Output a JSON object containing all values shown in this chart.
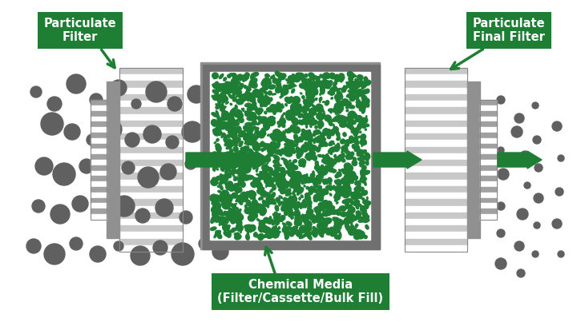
{
  "bg_color": "#ffffff",
  "filter_gray_light": "#c8c8c8",
  "filter_gray_mid": "#a0a0a0",
  "filter_gray_dark": "#888888",
  "filter_block": "#909090",
  "green_media": "#1e7e34",
  "green_arrow": "#1e7e34",
  "green_label": "#1e7e34",
  "particle_color": "#606060",
  "label_text_color": "#ffffff",
  "label1": "Particulate\nFilter",
  "label2": "Particulate\nFinal Filter",
  "label3": "Chemical Media\n(Filter/Cassette/Bulk Fill)"
}
